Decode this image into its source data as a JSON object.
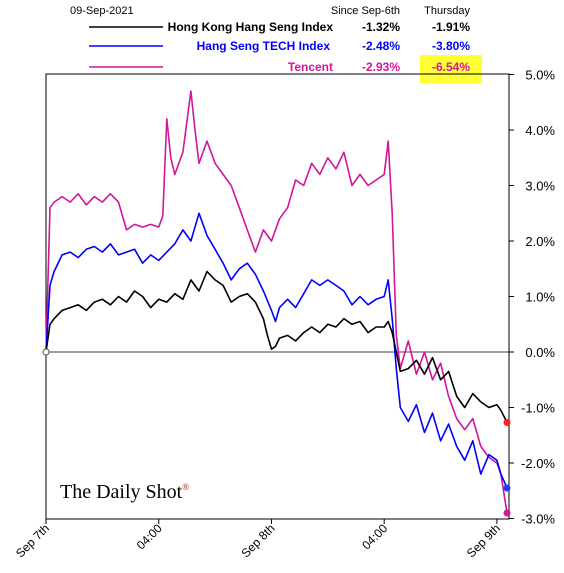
{
  "chart_data": {
    "type": "line",
    "date_label": "09-Sep-2021",
    "table_headers": [
      "Since Sep-6th",
      "Thursday"
    ],
    "ylim": [
      -3.0,
      5.0
    ],
    "y_ticks": [
      5.0,
      4.0,
      3.0,
      2.0,
      1.0,
      0.0,
      -1.0,
      -2.0,
      -3.0
    ],
    "y_tick_labels": [
      "5.0%",
      "4.0%",
      "3.0%",
      "2.0%",
      "1.0%",
      "0.0%",
      "-1.0%",
      "-2.0%",
      "-3.0%"
    ],
    "x_ticks": [
      "Sep 7th",
      "04:00",
      "Sep 8th",
      "04:00",
      "Sep 9th"
    ],
    "x_tick_positions": [
      0,
      28,
      56,
      84,
      112
    ],
    "xlim": [
      0,
      115
    ],
    "grid": false,
    "series": [
      {
        "name": "Hong Kong Hang Seng Index",
        "color": "#000000",
        "since": "-1.32%",
        "thursday": "-1.91%",
        "end_value": -1.27,
        "values": [
          [
            0,
            0
          ],
          [
            1,
            0.5
          ],
          [
            2,
            0.6
          ],
          [
            4,
            0.75
          ],
          [
            6,
            0.8
          ],
          [
            8,
            0.85
          ],
          [
            10,
            0.75
          ],
          [
            12,
            0.9
          ],
          [
            14,
            0.95
          ],
          [
            16,
            0.85
          ],
          [
            18,
            1.0
          ],
          [
            20,
            0.9
          ],
          [
            22,
            1.1
          ],
          [
            24,
            1.0
          ],
          [
            26,
            0.8
          ],
          [
            28,
            0.95
          ],
          [
            30,
            0.9
          ],
          [
            32,
            1.05
          ],
          [
            34,
            0.95
          ],
          [
            36,
            1.3
          ],
          [
            38,
            1.1
          ],
          [
            40,
            1.45
          ],
          [
            42,
            1.3
          ],
          [
            44,
            1.2
          ],
          [
            46,
            0.9
          ],
          [
            48,
            1.0
          ],
          [
            50,
            1.05
          ],
          [
            52,
            0.9
          ],
          [
            54,
            0.6
          ],
          [
            55,
            0.3
          ],
          [
            56,
            0.05
          ],
          [
            57,
            0.1
          ],
          [
            58,
            0.25
          ],
          [
            60,
            0.3
          ],
          [
            62,
            0.2
          ],
          [
            64,
            0.35
          ],
          [
            66,
            0.45
          ],
          [
            68,
            0.35
          ],
          [
            70,
            0.5
          ],
          [
            72,
            0.45
          ],
          [
            74,
            0.6
          ],
          [
            76,
            0.5
          ],
          [
            78,
            0.55
          ],
          [
            80,
            0.35
          ],
          [
            82,
            0.45
          ],
          [
            84,
            0.45
          ],
          [
            85,
            0.55
          ],
          [
            86,
            0.35
          ],
          [
            87,
            0.0
          ],
          [
            88,
            -0.35
          ],
          [
            90,
            -0.3
          ],
          [
            92,
            -0.15
          ],
          [
            94,
            -0.4
          ],
          [
            96,
            -0.1
          ],
          [
            98,
            -0.5
          ],
          [
            100,
            -0.35
          ],
          [
            102,
            -0.8
          ],
          [
            104,
            -1.0
          ],
          [
            106,
            -0.75
          ],
          [
            108,
            -0.9
          ],
          [
            110,
            -1.0
          ],
          [
            112,
            -0.95
          ],
          [
            113,
            -1.05
          ],
          [
            114.5,
            -1.27
          ]
        ]
      },
      {
        "name": "Hang Seng TECH Index",
        "color": "#0000ff",
        "since": "-2.48%",
        "thursday": "-3.80%",
        "end_value": -2.45,
        "values": [
          [
            0,
            0
          ],
          [
            1,
            1.2
          ],
          [
            2,
            1.45
          ],
          [
            4,
            1.75
          ],
          [
            6,
            1.8
          ],
          [
            8,
            1.7
          ],
          [
            10,
            1.85
          ],
          [
            12,
            1.9
          ],
          [
            14,
            1.8
          ],
          [
            16,
            1.95
          ],
          [
            18,
            1.75
          ],
          [
            20,
            1.8
          ],
          [
            22,
            1.85
          ],
          [
            24,
            1.6
          ],
          [
            26,
            1.75
          ],
          [
            28,
            1.65
          ],
          [
            30,
            1.8
          ],
          [
            32,
            1.95
          ],
          [
            34,
            2.2
          ],
          [
            36,
            2.0
          ],
          [
            38,
            2.5
          ],
          [
            40,
            2.1
          ],
          [
            42,
            1.85
          ],
          [
            44,
            1.6
          ],
          [
            46,
            1.3
          ],
          [
            48,
            1.5
          ],
          [
            50,
            1.6
          ],
          [
            52,
            1.4
          ],
          [
            54,
            1.1
          ],
          [
            56,
            0.75
          ],
          [
            57,
            0.55
          ],
          [
            58,
            0.8
          ],
          [
            60,
            0.95
          ],
          [
            62,
            0.8
          ],
          [
            64,
            1.05
          ],
          [
            66,
            1.3
          ],
          [
            68,
            1.2
          ],
          [
            70,
            1.3
          ],
          [
            72,
            1.2
          ],
          [
            74,
            1.1
          ],
          [
            76,
            0.85
          ],
          [
            78,
            1.0
          ],
          [
            80,
            0.85
          ],
          [
            82,
            0.95
          ],
          [
            84,
            1.0
          ],
          [
            85,
            1.3
          ],
          [
            86,
            0.6
          ],
          [
            87,
            -0.3
          ],
          [
            88,
            -1.0
          ],
          [
            90,
            -1.25
          ],
          [
            92,
            -0.95
          ],
          [
            94,
            -1.45
          ],
          [
            96,
            -1.1
          ],
          [
            98,
            -1.6
          ],
          [
            100,
            -1.3
          ],
          [
            102,
            -1.7
          ],
          [
            104,
            -1.95
          ],
          [
            106,
            -1.6
          ],
          [
            108,
            -2.2
          ],
          [
            110,
            -1.85
          ],
          [
            111,
            -1.9
          ],
          [
            112,
            -1.95
          ],
          [
            113,
            -2.2
          ],
          [
            114.5,
            -2.45
          ]
        ]
      },
      {
        "name": "Tencent",
        "color": "#d0169b",
        "since": "-2.93%",
        "thursday": "-6.54%",
        "end_value": -2.9,
        "values": [
          [
            0,
            0
          ],
          [
            1,
            2.6
          ],
          [
            2,
            2.7
          ],
          [
            4,
            2.8
          ],
          [
            6,
            2.7
          ],
          [
            8,
            2.85
          ],
          [
            10,
            2.65
          ],
          [
            12,
            2.8
          ],
          [
            14,
            2.7
          ],
          [
            16,
            2.85
          ],
          [
            18,
            2.7
          ],
          [
            20,
            2.2
          ],
          [
            22,
            2.3
          ],
          [
            24,
            2.25
          ],
          [
            26,
            2.3
          ],
          [
            28,
            2.25
          ],
          [
            29,
            2.45
          ],
          [
            30,
            4.2
          ],
          [
            31,
            3.5
          ],
          [
            32,
            3.2
          ],
          [
            34,
            3.6
          ],
          [
            36,
            4.7
          ],
          [
            37,
            4.0
          ],
          [
            38,
            3.4
          ],
          [
            40,
            3.8
          ],
          [
            42,
            3.4
          ],
          [
            44,
            3.2
          ],
          [
            46,
            3.0
          ],
          [
            48,
            2.6
          ],
          [
            50,
            2.2
          ],
          [
            52,
            1.8
          ],
          [
            54,
            2.2
          ],
          [
            56,
            2.0
          ],
          [
            58,
            2.4
          ],
          [
            60,
            2.6
          ],
          [
            62,
            3.1
          ],
          [
            64,
            3.0
          ],
          [
            66,
            3.4
          ],
          [
            68,
            3.2
          ],
          [
            70,
            3.5
          ],
          [
            72,
            3.3
          ],
          [
            74,
            3.6
          ],
          [
            76,
            3.0
          ],
          [
            78,
            3.2
          ],
          [
            80,
            3.0
          ],
          [
            82,
            3.1
          ],
          [
            84,
            3.2
          ],
          [
            85,
            3.8
          ],
          [
            86,
            2.5
          ],
          [
            87,
            0.3
          ],
          [
            88,
            -0.3
          ],
          [
            90,
            0.2
          ],
          [
            92,
            -0.4
          ],
          [
            94,
            0.0
          ],
          [
            96,
            -0.5
          ],
          [
            98,
            -0.2
          ],
          [
            100,
            -0.8
          ],
          [
            102,
            -1.2
          ],
          [
            104,
            -1.4
          ],
          [
            106,
            -1.2
          ],
          [
            108,
            -1.7
          ],
          [
            110,
            -1.9
          ],
          [
            112,
            -2.0
          ],
          [
            113,
            -2.2
          ],
          [
            114.5,
            -2.9
          ]
        ]
      }
    ],
    "watermark": "The Daily Shot",
    "watermark_mark": "®"
  }
}
